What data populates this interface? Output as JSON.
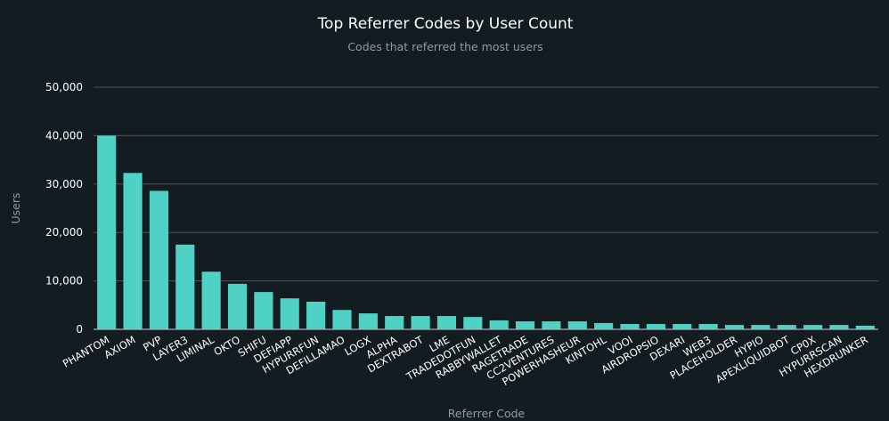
{
  "chart_data": {
    "type": "bar",
    "title": "Top Referrer Codes by User Count",
    "subtitle": "Codes that referred the most users",
    "xlabel": "Referrer Code",
    "ylabel": "Users",
    "ylim": [
      0,
      50000
    ],
    "yticks": [
      0,
      10000,
      20000,
      30000,
      40000,
      50000
    ],
    "ytick_labels": [
      "0",
      "10,000",
      "20,000",
      "30,000",
      "40,000",
      "50,000"
    ],
    "grid": true,
    "bar_color": "#4fd1c5",
    "background": "#131c21",
    "categories": [
      "PHANTOM",
      "AXIOM",
      "PVP",
      "LAYER3",
      "LIMINAL",
      "OKTO",
      "SHIFU",
      "DEFIAPP",
      "HYPURRFUN",
      "DEFILLAMAO",
      "LOGX",
      "ALPHA",
      "DEXTRABOT",
      "LME",
      "TRADEDOTFUN",
      "RABBYWALLET",
      "RAGETRADE",
      "CC2VENTURES",
      "POWERHASHEUR",
      "KINTOHL",
      "VOOI",
      "AIRDROPSIO",
      "DEXARI",
      "WEB3",
      "PLACEHOLDER",
      "HYPIO",
      "APEXLIQUIDBOT",
      "CP0X",
      "HYPURRSCAN",
      "HEXDRUNKER"
    ],
    "values": [
      40000,
      32300,
      28600,
      17500,
      11900,
      9400,
      7700,
      6400,
      5700,
      4000,
      3300,
      2750,
      2750,
      2750,
      2550,
      1850,
      1650,
      1650,
      1650,
      1300,
      1100,
      1100,
      1100,
      1100,
      900,
      900,
      900,
      900,
      900,
      750
    ]
  }
}
